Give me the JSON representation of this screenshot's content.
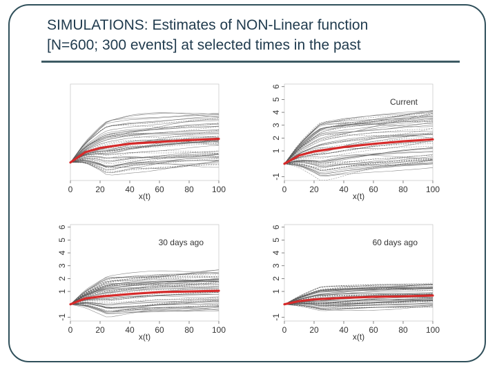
{
  "title": {
    "line1": "SIMULATIONS: Estimates of NON-Linear function",
    "line2": "[N=600; 300 events] at selected times in the past"
  },
  "colors": {
    "frame": "#2f4f5a",
    "title": "#1f3a4d",
    "curves": "#555555",
    "estimate": "#d62a2a",
    "rule": "#3d5a63"
  },
  "chart_data": [
    {
      "type": "line",
      "panel_label": "",
      "xlabel": "x(t)",
      "x_ticks": [
        "0",
        "20",
        "40",
        "60",
        "80",
        "100"
      ],
      "y_ticks": [],
      "xlim": [
        0,
        100
      ],
      "ylim": [
        -1.5,
        6.5
      ],
      "n_sim_curves": 60,
      "spread": 1.0,
      "series": [
        {
          "name": "estimate",
          "x": [
            0,
            10,
            20,
            40,
            60,
            80,
            100
          ],
          "y": [
            0,
            0.85,
            1.2,
            1.55,
            1.7,
            1.85,
            1.95
          ]
        }
      ]
    },
    {
      "type": "line",
      "panel_label": "Current",
      "xlabel": "x(t)",
      "x_ticks": [
        "0",
        "20",
        "40",
        "60",
        "80",
        "100"
      ],
      "y_ticks": [
        "-1",
        "1",
        "2",
        "3",
        "4",
        "5",
        "6"
      ],
      "xlim": [
        0,
        100
      ],
      "ylim": [
        -1.3,
        6.2
      ],
      "n_sim_curves": 60,
      "spread": 1.0,
      "series": [
        {
          "name": "estimate",
          "x": [
            0,
            10,
            20,
            40,
            60,
            80,
            100
          ],
          "y": [
            0,
            0.65,
            0.95,
            1.3,
            1.55,
            1.75,
            1.9
          ]
        }
      ]
    },
    {
      "type": "line",
      "panel_label": "30 days ago",
      "xlabel": "x(t)",
      "x_ticks": [
        "0",
        "20",
        "40",
        "60",
        "80",
        "100"
      ],
      "y_ticks": [
        "-1",
        "1",
        "2",
        "3",
        "4",
        "5",
        "6"
      ],
      "xlim": [
        0,
        100
      ],
      "ylim": [
        -1.3,
        6.2
      ],
      "n_sim_curves": 60,
      "spread": 0.7,
      "series": [
        {
          "name": "estimate",
          "x": [
            0,
            10,
            20,
            40,
            60,
            80,
            100
          ],
          "y": [
            0,
            0.45,
            0.6,
            0.8,
            0.95,
            1.0,
            1.05
          ]
        }
      ]
    },
    {
      "type": "line",
      "panel_label": "60 days ago",
      "xlabel": "x(t)",
      "x_ticks": [
        "0",
        "20",
        "40",
        "60",
        "80",
        "100"
      ],
      "y_ticks": [
        "-1",
        "1",
        "2",
        "3",
        "4",
        "5",
        "6"
      ],
      "xlim": [
        0,
        100
      ],
      "ylim": [
        -1.3,
        6.2
      ],
      "n_sim_curves": 60,
      "spread": 0.45,
      "series": [
        {
          "name": "estimate",
          "x": [
            0,
            10,
            20,
            40,
            60,
            80,
            100
          ],
          "y": [
            0,
            0.25,
            0.38,
            0.5,
            0.58,
            0.62,
            0.68
          ]
        }
      ]
    }
  ]
}
